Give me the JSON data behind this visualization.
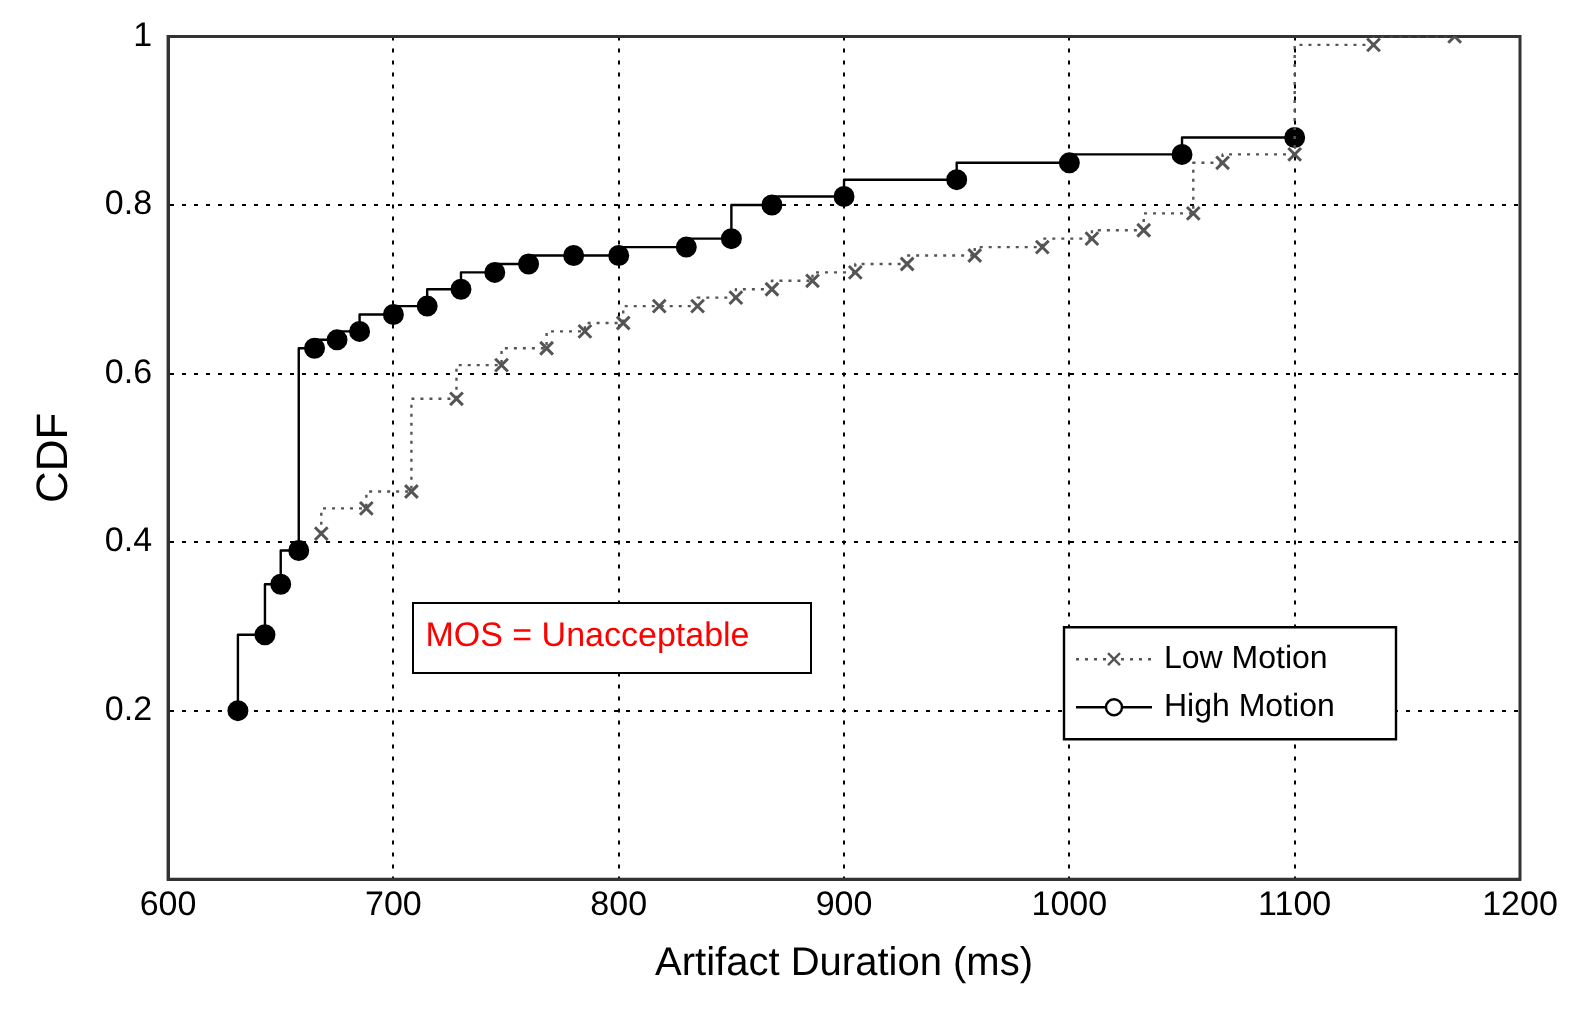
{
  "chart_data": {
    "type": "step",
    "xlabel": "Artifact Duration (ms)",
    "ylabel": "CDF",
    "xlim": [
      600,
      1200
    ],
    "xticks": [
      600,
      700,
      800,
      900,
      1000,
      1100,
      1200
    ],
    "ylim": [
      0,
      1
    ],
    "yticks": [
      0.2,
      0.4,
      0.6,
      0.8,
      1
    ],
    "grid": true,
    "legend": "bottom right",
    "annotations": [
      "MOS = Unacceptable"
    ],
    "series": [
      {
        "name": "Low Motion",
        "color": "#555555",
        "marker": "cross",
        "line_style": "dotted",
        "x": [
          668,
          688,
          708,
          728,
          748,
          768,
          785,
          802,
          818,
          835,
          852,
          868,
          886,
          905,
          928,
          958,
          988,
          1010,
          1033,
          1055,
          1068,
          1100,
          1135,
          1171
        ],
        "values": [
          0.41,
          0.44,
          0.46,
          0.57,
          0.61,
          0.63,
          0.65,
          0.66,
          0.68,
          0.68,
          0.69,
          0.7,
          0.71,
          0.72,
          0.73,
          0.74,
          0.75,
          0.76,
          0.77,
          0.79,
          0.85,
          0.86,
          0.99,
          1.0
        ]
      },
      {
        "name": "High Motion",
        "color": "#000000",
        "marker": "circle",
        "line_style": "solid",
        "x": [
          631,
          643,
          650,
          658,
          665,
          675,
          685,
          700,
          715,
          730,
          745,
          760,
          780,
          800,
          830,
          850,
          868,
          900,
          950,
          1000,
          1050,
          1100
        ],
        "values": [
          0.2,
          0.29,
          0.35,
          0.39,
          0.63,
          0.64,
          0.65,
          0.67,
          0.68,
          0.7,
          0.72,
          0.73,
          0.74,
          0.74,
          0.75,
          0.76,
          0.8,
          0.81,
          0.83,
          0.85,
          0.86,
          0.88
        ]
      }
    ]
  }
}
